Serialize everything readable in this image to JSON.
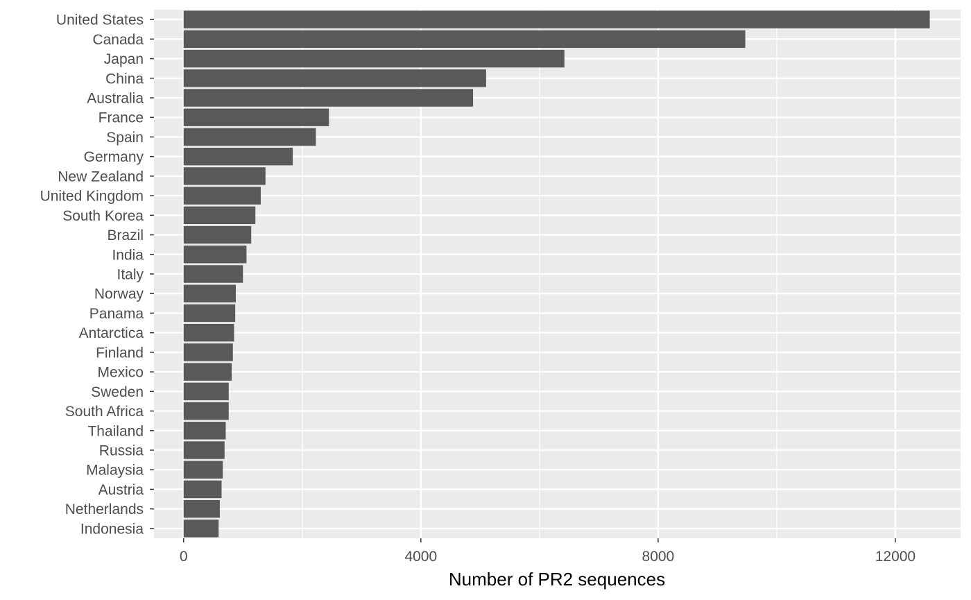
{
  "chart_data": {
    "type": "bar",
    "orientation": "horizontal",
    "title": "",
    "xlabel": "Number of PR2 sequences",
    "ylabel": "",
    "xlim": [
      -500,
      13100
    ],
    "xticks": [
      0,
      4000,
      8000,
      12000
    ],
    "x_minor_ticks": [
      2000,
      6000,
      10000
    ],
    "grid": true,
    "legend": "none",
    "colors": {
      "bar": "#595959",
      "panel": "#ebebeb",
      "grid": "#ffffff",
      "tick_text": "#4d4d4d"
    },
    "categories": [
      "United States",
      "Canada",
      "Japan",
      "China",
      "Australia",
      "France",
      "Spain",
      "Germany",
      "New Zealand",
      "United Kingdom",
      "South Korea",
      "Brazil",
      "India",
      "Italy",
      "Norway",
      "Panama",
      "Antarctica",
      "Finland",
      "Mexico",
      "Sweden",
      "South Africa",
      "Thailand",
      "Russia",
      "Malaysia",
      "Austria",
      "Netherlands",
      "Indonesia"
    ],
    "values": [
      12580,
      9470,
      6420,
      5100,
      4880,
      2450,
      2230,
      1840,
      1380,
      1300,
      1210,
      1140,
      1060,
      1000,
      880,
      870,
      850,
      830,
      810,
      760,
      760,
      710,
      690,
      660,
      640,
      610,
      590
    ]
  }
}
